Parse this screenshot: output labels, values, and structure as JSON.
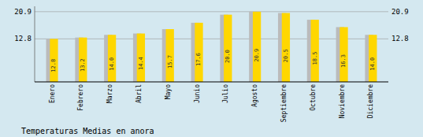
{
  "chart_data": {
    "type": "bar",
    "title": "Temperaturas Medias en anora",
    "categories": [
      "Enero",
      "Febrero",
      "Marzo",
      "Abril",
      "Mayo",
      "Junio",
      "Julio",
      "Agosto",
      "Septiembre",
      "Octubre",
      "Noviembre",
      "Diciembre"
    ],
    "values": [
      12.8,
      13.2,
      14.0,
      14.4,
      15.7,
      17.6,
      20.0,
      20.9,
      20.5,
      18.5,
      16.3,
      14.0
    ],
    "value_labels": [
      "12.8",
      "13.2",
      "14.0",
      "14.4",
      "15.7",
      "17.6",
      "20.0",
      "20.9",
      "20.5",
      "18.5",
      "16.3",
      "14.0"
    ],
    "color": "#FFD700",
    "ylim": [
      0,
      22.5
    ],
    "yticks": [
      12.8,
      20.9
    ],
    "grid": true,
    "data_labels": true
  }
}
